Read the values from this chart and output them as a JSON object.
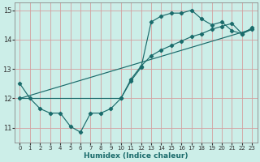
{
  "xlabel": "Humidex (Indice chaleur)",
  "xlim": [
    -0.5,
    23.5
  ],
  "ylim": [
    10.5,
    15.25
  ],
  "background_color": "#cceee8",
  "grid_color_major": "#e8b8b8",
  "grid_color_minor": "#d8d0d0",
  "line_color": "#1a6b6b",
  "line1_x": [
    0,
    1,
    2,
    3,
    4,
    5,
    6,
    7,
    8,
    9,
    10,
    11,
    12,
    13,
    14,
    15,
    16,
    17,
    18,
    19,
    20,
    21,
    22,
    23
  ],
  "line1_y": [
    12.5,
    12.0,
    11.65,
    11.5,
    11.5,
    11.05,
    10.85,
    11.5,
    11.5,
    11.65,
    12.0,
    12.6,
    13.05,
    14.6,
    14.8,
    14.9,
    14.9,
    15.0,
    14.7,
    14.5,
    14.6,
    14.3,
    14.2,
    14.4
  ],
  "line2_x": [
    0,
    10,
    11,
    12,
    13,
    14,
    15,
    16,
    17,
    18,
    19,
    20,
    21,
    22,
    23
  ],
  "line2_y": [
    12.0,
    12.0,
    12.65,
    13.1,
    13.45,
    13.65,
    13.8,
    13.95,
    14.1,
    14.2,
    14.35,
    14.45,
    14.55,
    14.2,
    14.35
  ],
  "line3_x": [
    0,
    23
  ],
  "line3_y": [
    12.0,
    14.35
  ],
  "ytick_values": [
    11,
    12,
    13,
    14,
    15
  ],
  "xtick_labels": [
    "0",
    "1",
    "2",
    "3",
    "4",
    "5",
    "6",
    "7",
    "8",
    "9",
    "10",
    "11",
    "12",
    "13",
    "14",
    "15",
    "16",
    "17",
    "18",
    "19",
    "20",
    "21",
    "22",
    "23"
  ],
  "marker": "D",
  "marker_size": 2.2,
  "linewidth": 0.85
}
